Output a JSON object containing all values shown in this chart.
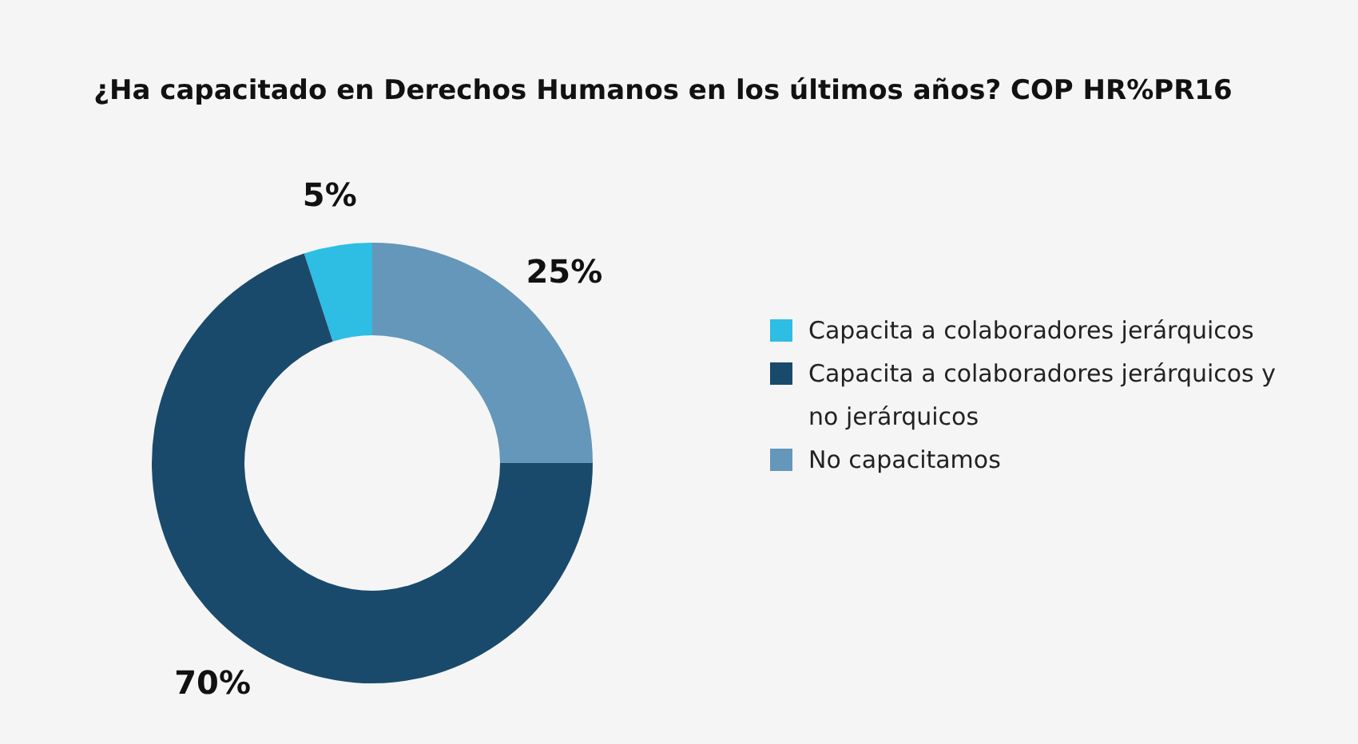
{
  "chart_data": {
    "type": "donut",
    "title": "¿Ha capacitado en Derechos Humanos en los últimos años? COP HR%PR16",
    "categories": [
      "Capacita a colaboradores jerárquicos",
      "Capacita a colaboradores jerárquicos y no jerárquicos",
      "No capacitamos"
    ],
    "values": [
      5,
      70,
      25
    ],
    "colors": [
      "#2ebde3",
      "#1a4a6b",
      "#6497b9"
    ],
    "value_labels": [
      "5%",
      "70%",
      "25%"
    ],
    "legend": "right"
  }
}
